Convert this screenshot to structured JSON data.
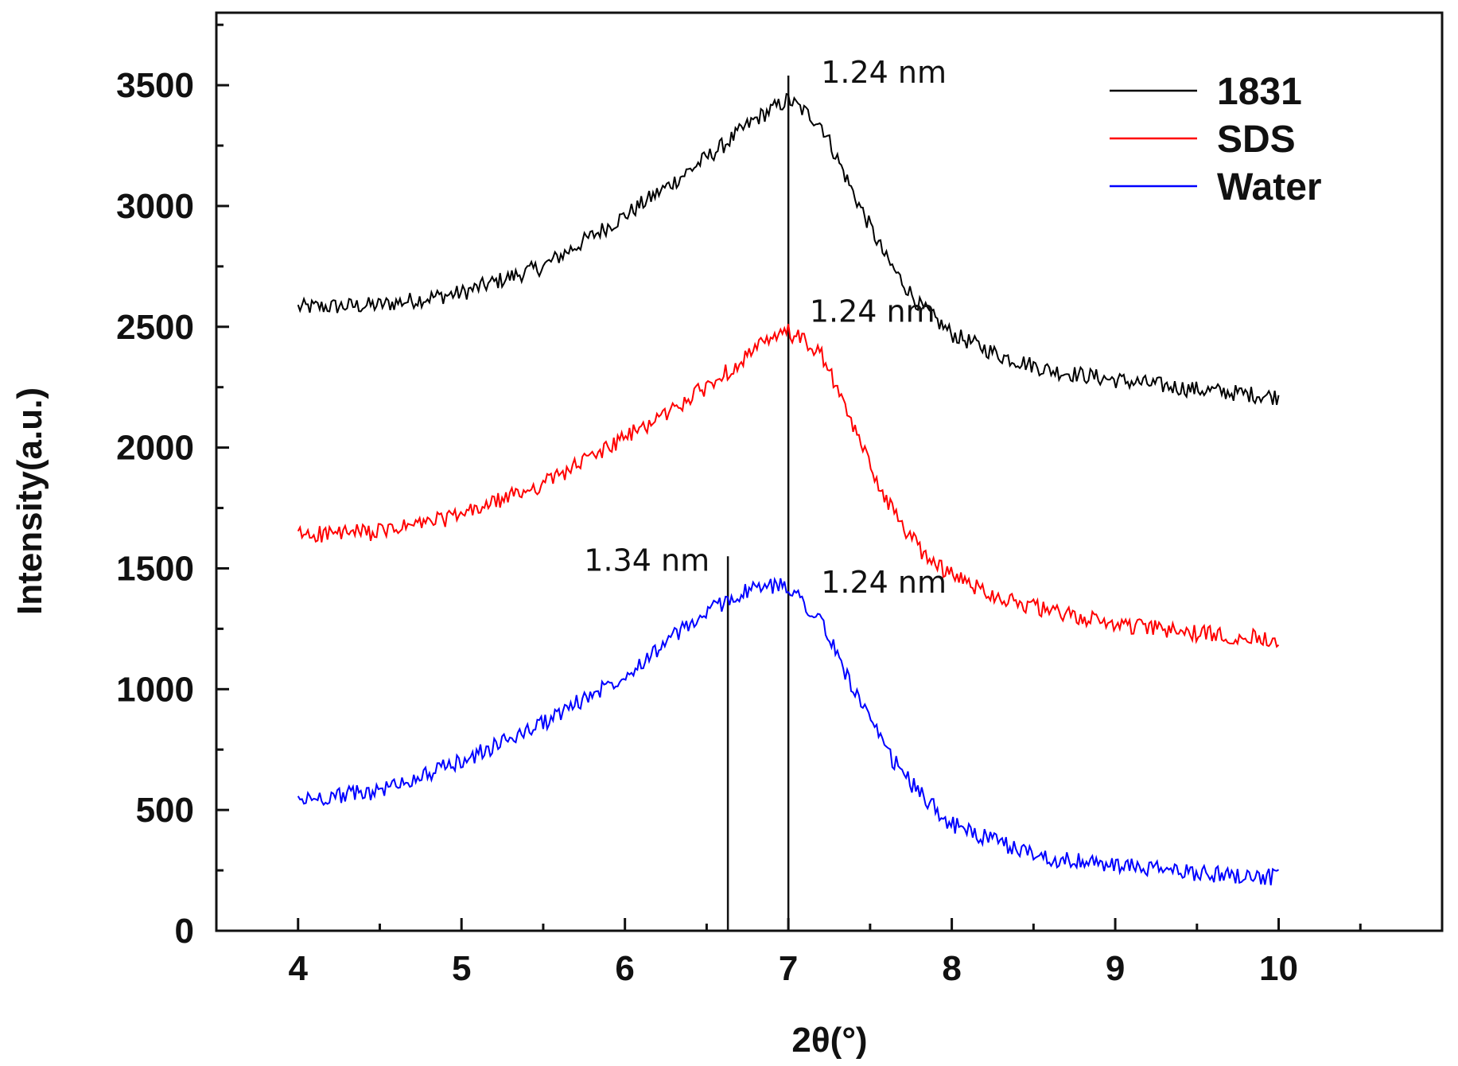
{
  "chart_data": {
    "type": "line",
    "xlabel": "2θ(°)",
    "ylabel": "Intensity(a.u.)",
    "xlim": [
      3.5,
      11.0
    ],
    "ylim": [
      0,
      3800
    ],
    "x_ticks": [
      4,
      5,
      6,
      7,
      8,
      9,
      10
    ],
    "x_tick_labels": [
      "4",
      "5",
      "6",
      "7",
      "8",
      "9",
      "10"
    ],
    "y_ticks": [
      0,
      500,
      1000,
      1500,
      2000,
      2500,
      3000,
      3500
    ],
    "y_tick_labels": [
      "0",
      "500",
      "1000",
      "1500",
      "2000",
      "2500",
      "3000",
      "3500"
    ],
    "legend_position": "top-right",
    "series": [
      {
        "name": "1831",
        "color": "#000000",
        "x": [
          4.0,
          4.5,
          5.0,
          5.5,
          6.0,
          6.3,
          6.6,
          6.8,
          7.0,
          7.2,
          7.4,
          7.6,
          7.8,
          8.0,
          8.3,
          8.6,
          9.0,
          9.5,
          10.0
        ],
        "values": [
          2580,
          2590,
          2640,
          2750,
          2960,
          3100,
          3250,
          3360,
          3440,
          3340,
          3050,
          2780,
          2590,
          2470,
          2380,
          2320,
          2280,
          2240,
          2210
        ]
      },
      {
        "name": "SDS",
        "color": "#ff0000",
        "x": [
          4.0,
          4.5,
          5.0,
          5.5,
          6.0,
          6.3,
          6.6,
          6.8,
          7.0,
          7.2,
          7.4,
          7.6,
          7.8,
          8.0,
          8.3,
          8.6,
          9.0,
          9.5,
          10.0
        ],
        "values": [
          1640,
          1650,
          1720,
          1850,
          2040,
          2160,
          2300,
          2410,
          2480,
          2390,
          2080,
          1780,
          1580,
          1470,
          1380,
          1320,
          1270,
          1230,
          1210
        ]
      },
      {
        "name": "Water",
        "color": "#0000ff",
        "x": [
          4.0,
          4.5,
          5.0,
          5.5,
          6.0,
          6.3,
          6.6,
          6.8,
          7.0,
          7.2,
          7.4,
          7.6,
          7.8,
          8.0,
          8.3,
          8.6,
          9.0,
          9.5,
          10.0
        ],
        "values": [
          540,
          580,
          700,
          860,
          1060,
          1220,
          1360,
          1420,
          1430,
          1280,
          1000,
          740,
          570,
          440,
          360,
          300,
          270,
          240,
          220
        ]
      }
    ],
    "reference_lines": [
      {
        "x": 7.0,
        "y_top": 3540
      },
      {
        "x": 6.63,
        "y_top": 1550
      }
    ],
    "annotations": [
      {
        "text": "1.24 nm",
        "x": 7.2,
        "y": 3510
      },
      {
        "text": "1.24 nm",
        "x": 7.13,
        "y": 2520
      },
      {
        "text": "1.34 nm",
        "x": 5.75,
        "y": 1490
      },
      {
        "text": "1.24 nm",
        "x": 7.2,
        "y": 1400
      }
    ]
  }
}
